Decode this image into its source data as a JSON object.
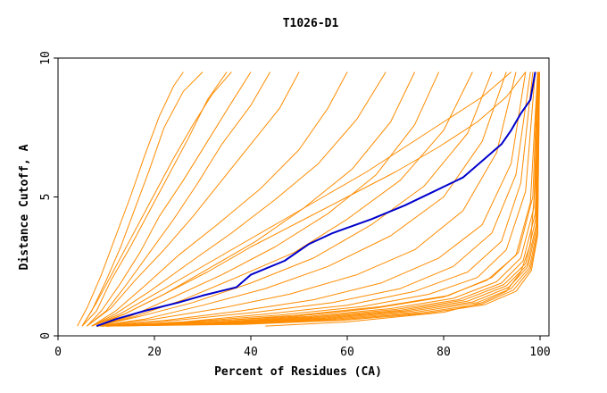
{
  "chart_data": {
    "type": "line",
    "title": "T1026-D1",
    "xlabel": "Percent of Residues (CA)",
    "ylabel": "Distance Cutoff, A",
    "xlim": [
      0,
      100
    ],
    "ylim": [
      0,
      10
    ],
    "x_ticks": [
      0,
      20,
      40,
      60,
      80,
      100
    ],
    "y_ticks": [
      0,
      5,
      10
    ],
    "grid": false,
    "legend": "none",
    "colors": {
      "models": "#ff8c00",
      "highlight": "#0000cc",
      "axes": "#000000",
      "background": "#ffffff"
    },
    "series": [
      {
        "role": "highlight",
        "x": [
          8,
          12,
          18,
          25,
          30,
          37,
          40,
          47,
          52,
          57,
          65,
          72,
          78,
          84,
          88,
          92,
          94,
          96,
          98,
          98.5,
          99
        ],
        "y": [
          0.35,
          0.6,
          0.9,
          1.2,
          1.45,
          1.75,
          2.2,
          2.7,
          3.3,
          3.7,
          4.2,
          4.7,
          5.2,
          5.7,
          6.3,
          6.9,
          7.4,
          8.0,
          8.5,
          9.0,
          9.5
        ]
      },
      {
        "role": "model",
        "x": [
          4,
          6,
          9,
          12,
          15,
          18,
          21,
          24,
          26
        ],
        "y": [
          0.35,
          1.0,
          2.2,
          3.6,
          5.0,
          6.5,
          7.9,
          9.0,
          9.5
        ]
      },
      {
        "role": "model",
        "x": [
          5,
          7,
          10,
          13,
          16,
          19,
          22,
          26,
          30
        ],
        "y": [
          0.35,
          0.9,
          2.0,
          3.2,
          4.6,
          6.0,
          7.5,
          8.8,
          9.5
        ]
      },
      {
        "role": "model",
        "x": [
          5,
          8,
          11,
          15,
          19,
          23,
          27,
          31,
          35
        ],
        "y": [
          0.35,
          0.9,
          2.0,
          3.2,
          4.5,
          5.8,
          7.1,
          8.5,
          9.5
        ]
      },
      {
        "role": "model",
        "x": [
          6,
          9,
          13,
          17,
          21,
          26,
          31,
          36,
          40
        ],
        "y": [
          0.35,
          0.9,
          1.9,
          3.0,
          4.3,
          5.6,
          7.0,
          8.4,
          9.5
        ]
      },
      {
        "role": "model",
        "x": [
          6,
          10,
          14,
          19,
          24,
          29,
          34,
          40,
          44
        ],
        "y": [
          0.35,
          0.9,
          1.8,
          3.0,
          4.2,
          5.5,
          6.9,
          8.3,
          9.5
        ]
      },
      {
        "role": "model",
        "x": [
          5,
          8,
          12,
          16,
          20,
          24,
          28,
          32,
          36
        ],
        "y": [
          0.35,
          1.2,
          2.5,
          3.8,
          5.1,
          6.4,
          7.6,
          8.7,
          9.5
        ]
      },
      {
        "role": "model",
        "x": [
          7,
          12,
          18,
          25,
          33,
          42,
          50,
          56,
          60
        ],
        "y": [
          0.35,
          0.9,
          1.8,
          2.9,
          4.0,
          5.3,
          6.7,
          8.2,
          9.5
        ]
      },
      {
        "role": "model",
        "x": [
          7,
          12,
          19,
          27,
          36,
          45,
          54,
          62,
          68
        ],
        "y": [
          0.35,
          0.8,
          1.6,
          2.6,
          3.7,
          4.9,
          6.2,
          7.8,
          9.5
        ]
      },
      {
        "role": "model",
        "x": [
          8,
          14,
          22,
          31,
          41,
          51,
          61,
          69,
          74
        ],
        "y": [
          0.35,
          0.8,
          1.5,
          2.4,
          3.4,
          4.6,
          6.0,
          7.7,
          9.5
        ]
      },
      {
        "role": "model",
        "x": [
          8,
          15,
          24,
          34,
          45,
          56,
          66,
          74,
          79
        ],
        "y": [
          0.35,
          0.7,
          1.4,
          2.2,
          3.2,
          4.4,
          5.8,
          7.6,
          9.5
        ]
      },
      {
        "role": "model",
        "x": [
          8,
          16,
          26,
          37,
          49,
          60,
          71,
          80,
          86
        ],
        "y": [
          0.35,
          0.7,
          1.3,
          2.1,
          3.0,
          4.2,
          5.6,
          7.4,
          9.5
        ]
      },
      {
        "role": "model",
        "x": [
          8,
          17,
          28,
          40,
          53,
          65,
          76,
          85,
          90
        ],
        "y": [
          0.35,
          0.7,
          1.2,
          1.9,
          2.8,
          4.0,
          5.4,
          7.3,
          9.5
        ]
      },
      {
        "role": "model",
        "x": [
          8,
          18,
          30,
          43,
          56,
          69,
          80,
          88,
          93
        ],
        "y": [
          0.35,
          0.6,
          1.1,
          1.7,
          2.5,
          3.6,
          5.0,
          7.0,
          9.5
        ]
      },
      {
        "role": "model",
        "x": [
          8,
          20,
          34,
          48,
          62,
          74,
          84,
          91,
          95
        ],
        "y": [
          0.35,
          0.6,
          1.0,
          1.5,
          2.2,
          3.1,
          4.5,
          6.6,
          9.5
        ]
      },
      {
        "role": "model",
        "x": [
          8,
          22,
          38,
          53,
          67,
          79,
          88,
          94,
          97
        ],
        "y": [
          0.35,
          0.55,
          0.9,
          1.3,
          1.9,
          2.8,
          4.0,
          6.2,
          9.5
        ]
      },
      {
        "role": "model",
        "x": [
          8,
          24,
          41,
          57,
          71,
          82,
          90,
          95,
          98
        ],
        "y": [
          0.35,
          0.55,
          0.85,
          1.2,
          1.7,
          2.5,
          3.7,
          5.8,
          9.5
        ]
      },
      {
        "role": "model",
        "x": [
          8,
          26,
          44,
          60,
          74,
          85,
          92,
          96,
          98.5
        ],
        "y": [
          0.35,
          0.5,
          0.8,
          1.1,
          1.6,
          2.3,
          3.4,
          5.5,
          9.5
        ]
      },
      {
        "role": "model",
        "x": [
          8,
          27,
          46,
          63,
          77,
          87,
          93,
          97,
          99
        ],
        "y": [
          0.35,
          0.5,
          0.75,
          1.05,
          1.5,
          2.1,
          3.1,
          5.2,
          9.5
        ]
      },
      {
        "role": "model",
        "x": [
          9,
          29,
          49,
          66,
          80,
          89,
          95,
          98,
          99.5
        ],
        "y": [
          0.35,
          0.5,
          0.7,
          1.0,
          1.4,
          2.0,
          2.9,
          4.8,
          9.5
        ]
      },
      {
        "role": "model",
        "x": [
          9,
          30,
          50,
          67,
          81,
          90,
          95.5,
          98.5,
          99.5
        ],
        "y": [
          0.35,
          0.5,
          0.75,
          1.05,
          1.45,
          2.1,
          3.0,
          5.0,
          9.5
        ]
      },
      {
        "role": "model",
        "x": [
          9,
          31,
          52,
          69,
          82,
          91,
          96,
          98.7,
          99.6
        ],
        "y": [
          0.35,
          0.48,
          0.7,
          0.98,
          1.35,
          1.95,
          2.8,
          4.6,
          9.5
        ]
      },
      {
        "role": "model",
        "x": [
          9,
          32,
          53,
          70,
          83,
          92,
          96.5,
          99,
          99.7
        ],
        "y": [
          0.35,
          0.47,
          0.68,
          0.95,
          1.3,
          1.9,
          2.7,
          4.4,
          9.5
        ]
      },
      {
        "role": "model",
        "x": [
          9,
          33,
          54,
          71,
          84,
          92.5,
          97,
          99.1,
          99.8
        ],
        "y": [
          0.35,
          0.46,
          0.66,
          0.92,
          1.28,
          1.85,
          2.6,
          4.2,
          9.5
        ]
      },
      {
        "role": "model",
        "x": [
          10,
          34,
          55,
          72,
          85,
          93,
          97.3,
          99.2,
          99.8
        ],
        "y": [
          0.35,
          0.45,
          0.64,
          0.9,
          1.25,
          1.8,
          2.55,
          4.0,
          9.5
        ]
      },
      {
        "role": "model",
        "x": [
          10,
          35,
          56,
          73,
          86,
          93.5,
          97.5,
          99.3,
          99.9
        ],
        "y": [
          0.35,
          0.44,
          0.62,
          0.88,
          1.22,
          1.75,
          2.5,
          3.9,
          9.5
        ]
      },
      {
        "role": "model",
        "x": [
          10,
          36,
          57,
          74,
          87,
          94,
          97.8,
          99.4,
          99.9
        ],
        "y": [
          0.35,
          0.43,
          0.6,
          0.85,
          1.2,
          1.7,
          2.45,
          3.8,
          9.5
        ]
      },
      {
        "role": "model",
        "x": [
          10,
          37,
          58,
          75,
          88,
          94.5,
          98,
          99.5,
          99.9
        ],
        "y": [
          0.35,
          0.42,
          0.58,
          0.82,
          1.15,
          1.65,
          2.4,
          3.7,
          9.5
        ]
      },
      {
        "role": "model",
        "x": [
          10,
          38,
          59,
          76,
          88.5,
          95,
          98.2,
          99.5,
          99.9
        ],
        "y": [
          0.35,
          0.41,
          0.56,
          0.8,
          1.12,
          1.6,
          2.35,
          3.6,
          9.5
        ]
      },
      {
        "role": "model",
        "x": [
          43,
          60,
          80,
          88,
          93,
          96,
          98,
          99,
          99.5
        ],
        "y": [
          0.35,
          0.5,
          0.85,
          1.2,
          1.6,
          2.3,
          3.3,
          5.5,
          9.5
        ]
      },
      {
        "role": "model",
        "x": [
          6,
          11,
          16,
          22,
          28,
          34,
          40,
          46,
          50
        ],
        "y": [
          0.35,
          1.0,
          2.0,
          3.1,
          4.3,
          5.6,
          6.9,
          8.2,
          9.5
        ]
      },
      {
        "role": "model",
        "x": [
          7,
          13,
          20,
          28,
          37,
          46,
          55,
          64,
          72,
          80,
          88,
          94
        ],
        "y": [
          0.35,
          0.8,
          1.5,
          2.3,
          3.2,
          4.1,
          5.0,
          5.9,
          6.8,
          7.7,
          8.6,
          9.5
        ]
      },
      {
        "role": "model",
        "x": [
          7,
          14,
          22,
          31,
          40,
          50,
          60,
          70,
          79,
          87,
          93,
          97
        ],
        "y": [
          0.35,
          0.8,
          1.5,
          2.3,
          3.2,
          4.1,
          5.0,
          5.9,
          6.8,
          7.7,
          8.6,
          9.5
        ]
      }
    ]
  }
}
